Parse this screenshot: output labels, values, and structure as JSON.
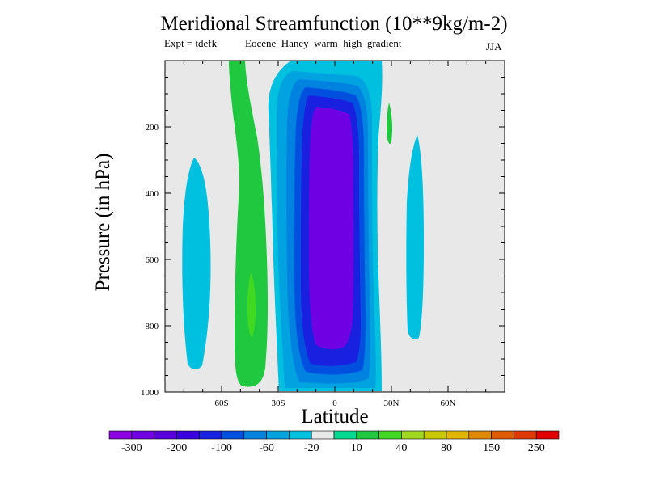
{
  "chart_data": {
    "type": "contour",
    "title": "Meridional Streamfunction (10**9kg/m-2)",
    "experiment_label": "Expt = tdefk",
    "run_name": "Eocene_Haney_warm_high_gradient",
    "season": "JJA",
    "xlabel": "Latitude",
    "ylabel": "Pressure (in hPa)",
    "xlim": [
      -90,
      90
    ],
    "ylim": [
      1000,
      0
    ],
    "y_ticks": [
      200,
      400,
      600,
      800,
      1000
    ],
    "y_tick_labels": [
      "200",
      "400",
      "600",
      "800",
      "1000"
    ],
    "x_ticks": [
      -60,
      -30,
      0,
      30,
      60
    ],
    "x_tick_labels": [
      "60S",
      "30S",
      "0",
      "30N",
      "60N"
    ],
    "colorbar": {
      "colors": [
        "#8a00e0",
        "#6f00e3",
        "#5900dd",
        "#3a00e0",
        "#1a20e0",
        "#0050e0",
        "#0082e0",
        "#00a2e0",
        "#00c0e0",
        "#e8e8e8",
        "#00d890",
        "#20c840",
        "#40d820",
        "#a0d820",
        "#c8c800",
        "#e0b400",
        "#e08800",
        "#e05a00",
        "#e03800",
        "#e00000"
      ],
      "labels": [
        "-300",
        "-200",
        "-100",
        "-60",
        "-20",
        "10",
        "40",
        "80",
        "150",
        "250"
      ]
    },
    "contour_levels_color_index": {
      "background": 9,
      "main_cell_outer": 8,
      "main_cell_level2": 7,
      "main_cell_level3": 6,
      "main_cell_level4": 5,
      "main_cell_level5": 4,
      "main_cell_core": 1,
      "south_positive": 11,
      "south_positive_core": 12,
      "side_negative": 8
    }
  }
}
